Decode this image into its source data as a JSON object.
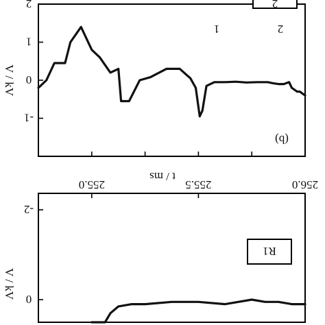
{
  "chart_data": [
    {
      "type": "line",
      "panel_label": "(b)",
      "xlabel": "t / ms",
      "ylabel": "V / kV",
      "ylim": [
        -2,
        2
      ],
      "yticks": [
        -1,
        0,
        1,
        2
      ],
      "ytick_labels": [
        "-1",
        "0",
        "1",
        "2"
      ],
      "annotations": [
        "1",
        "2"
      ],
      "legend": "2",
      "series": [
        {
          "x": [
            0,
            0.02,
            0.03,
            0.05,
            0.06,
            0.08,
            0.1,
            0.12,
            0.14,
            0.18,
            0.22,
            0.26,
            0.3,
            0.34,
            0.37,
            0.385,
            0.395,
            0.41,
            0.43,
            0.47,
            0.52,
            0.58,
            0.62,
            0.66,
            0.69,
            0.7,
            0.73,
            0.77,
            0.8,
            0.84,
            0.88,
            0.9,
            0.94,
            0.97,
            1.0
          ],
          "y": [
            -0.4,
            -0.3,
            -0.3,
            -0.2,
            -0.05,
            -0.1,
            -0.1,
            -0.08,
            -0.05,
            -0.05,
            -0.06,
            -0.04,
            -0.05,
            -0.05,
            -0.15,
            -0.8,
            -0.95,
            -0.2,
            0.05,
            0.3,
            0.3,
            0.08,
            0.0,
            -0.55,
            -0.55,
            0.3,
            0.2,
            0.6,
            0.8,
            1.4,
            1.0,
            0.45,
            0.45,
            0.0,
            -0.2
          ]
        }
      ]
    },
    {
      "type": "line",
      "panel_label": "R1",
      "xlim": [
        255.0,
        256.0
      ],
      "xticks": [
        "255.0",
        "255.5",
        "256.0"
      ],
      "ylabel": "V / kV",
      "yticks": [
        -2,
        0
      ],
      "ytick_labels": [
        "-2",
        "0"
      ],
      "series": [
        {
          "x": [
            0,
            0.02,
            0.05,
            0.1,
            0.15,
            0.2,
            0.3,
            0.4,
            0.5,
            0.6,
            0.65,
            0.7,
            0.73,
            0.75,
            0.8
          ],
          "y": [
            -0.1,
            -0.1,
            -0.1,
            -0.05,
            -0.05,
            0.0,
            -0.1,
            -0.05,
            -0.05,
            -0.1,
            -0.1,
            -0.15,
            -0.3,
            -0.5,
            -0.5
          ]
        }
      ]
    }
  ]
}
